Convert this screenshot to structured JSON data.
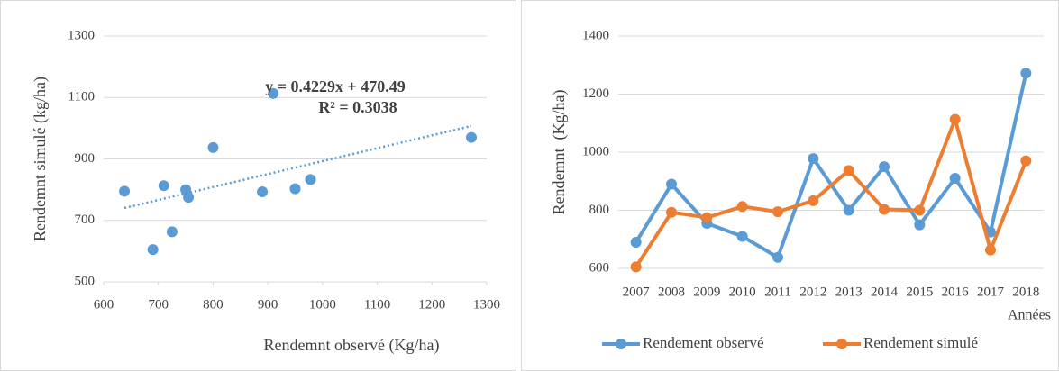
{
  "chart_data": [
    {
      "type": "scatter",
      "x": [
        690,
        890,
        755,
        710,
        638,
        978,
        800,
        950,
        750,
        910,
        725,
        1272
      ],
      "values": [
        605,
        793,
        775,
        813,
        795,
        833,
        937,
        803,
        800,
        1113,
        663,
        970
      ],
      "color": "#5b9bd5",
      "trendline": true,
      "xlim": [
        600,
        1300
      ],
      "xticks": [
        600,
        700,
        800,
        900,
        1000,
        1100,
        1200,
        1300
      ],
      "ylim": [
        500,
        1300
      ],
      "yticks": [
        500,
        700,
        900,
        1100,
        1300
      ],
      "grid": true,
      "x_label": "Rendemnt observé (Kg/ha)",
      "y_label": "Rendemnt simulé (kg/ha)",
      "annotations": [
        "y = 0.4229x + 470.49",
        "R² = 0.3038"
      ]
    },
    {
      "type": "line",
      "categories": [
        "2007",
        "2008",
        "2009",
        "2010",
        "2011",
        "2012",
        "2013",
        "2014",
        "2015",
        "2016",
        "2017",
        "2018"
      ],
      "series": [
        {
          "name": "Rendement observé",
          "color": "#5b9bd5",
          "values": [
            690,
            890,
            755,
            710,
            638,
            978,
            800,
            950,
            750,
            910,
            725,
            1272
          ]
        },
        {
          "name": "Rendement simulé",
          "color": "#ed7d31",
          "values": [
            605,
            793,
            775,
            813,
            795,
            833,
            937,
            803,
            800,
            1113,
            663,
            970
          ]
        }
      ],
      "ylim": [
        600,
        1400
      ],
      "yticks": [
        600,
        800,
        1000,
        1200,
        1400
      ],
      "grid": true,
      "x_label": "Années",
      "y_label": "Rendemnt  (Kg/ha)",
      "legend": "bottom"
    }
  ]
}
